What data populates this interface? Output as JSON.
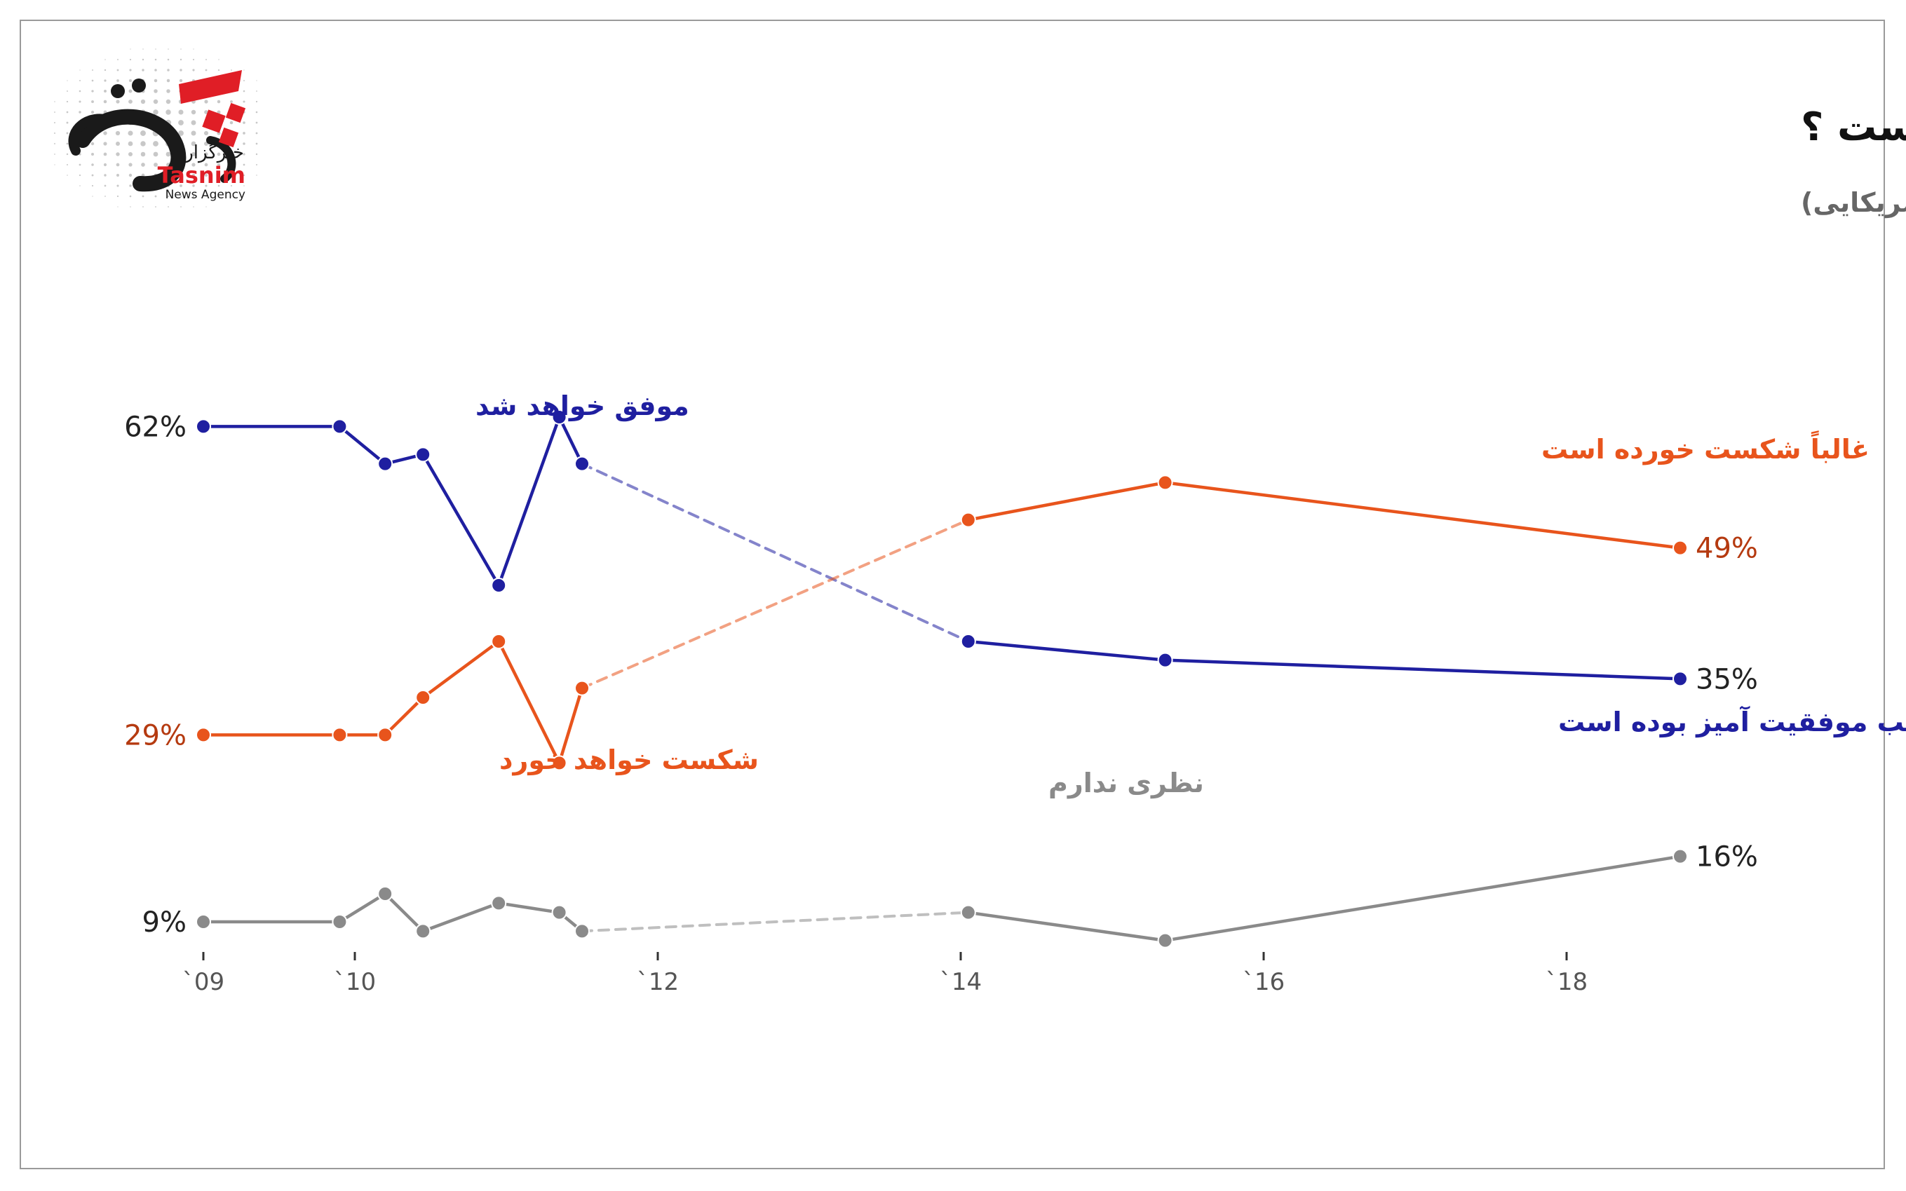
{
  "brand": {
    "name_fa": "خبرگزاری",
    "name_en": "Tasnim",
    "tagline": "News Agency",
    "red": "#e01e26",
    "black": "#1a1a1a"
  },
  "chart_data": {
    "type": "line",
    "title": "آیا فکر می‌کنید آمریکا به اهدافش در افغانستان رسیده است ؟",
    "subtitle": "(نظرسنجی از بزرگسالان آمریکایی)",
    "xlim": [
      2009,
      2019
    ],
    "ylim": [
      0,
      75
    ],
    "x_ticks": [
      {
        "value": 2009,
        "label": "`09"
      },
      {
        "value": 2010,
        "label": "`10"
      },
      {
        "value": 2012,
        "label": "`12"
      },
      {
        "value": 2014,
        "label": "`14"
      },
      {
        "value": 2016,
        "label": "`16"
      },
      {
        "value": 2018,
        "label": "`18"
      }
    ],
    "series": [
      {
        "id": "succeed",
        "color": "#1f1fa0",
        "points": [
          [
            2009.0,
            62
          ],
          [
            2009.9,
            62
          ],
          [
            2010.2,
            58
          ],
          [
            2010.45,
            59
          ],
          [
            2010.95,
            45
          ],
          [
            2011.35,
            63
          ],
          [
            2011.5,
            58
          ],
          [
            2014.05,
            39
          ],
          [
            2015.35,
            37
          ],
          [
            2018.75,
            35
          ]
        ],
        "dashed_segment": [
          6,
          7
        ],
        "label_start": "62%",
        "label_end": "35%"
      },
      {
        "id": "fail",
        "color": "#e8541c",
        "points": [
          [
            2009.0,
            29
          ],
          [
            2009.9,
            29
          ],
          [
            2010.2,
            29
          ],
          [
            2010.45,
            33
          ],
          [
            2010.95,
            39
          ],
          [
            2011.35,
            26
          ],
          [
            2011.5,
            34
          ],
          [
            2014.05,
            52
          ],
          [
            2015.35,
            56
          ],
          [
            2018.75,
            49
          ]
        ],
        "dashed_segment": [
          6,
          7
        ],
        "label_start": "29%",
        "label_end": "49%"
      },
      {
        "id": "noopinion",
        "color": "#8a8a8a",
        "points": [
          [
            2009.0,
            9
          ],
          [
            2009.9,
            9
          ],
          [
            2010.2,
            12
          ],
          [
            2010.45,
            8
          ],
          [
            2010.95,
            11
          ],
          [
            2011.35,
            10
          ],
          [
            2011.5,
            8
          ],
          [
            2014.05,
            10
          ],
          [
            2015.35,
            7
          ],
          [
            2018.75,
            16
          ]
        ],
        "dashed_segment": [
          6,
          7
        ],
        "label_start": "9%",
        "label_end": "16%"
      }
    ],
    "annotations": [
      {
        "text": "موفق خواهد شد",
        "series": "succeed"
      },
      {
        "text": "غالباً شکست خورده است",
        "series": "fail"
      },
      {
        "text": "شکست خواهد خورد",
        "series": "fail"
      },
      {
        "text": "اغلب موفقیت آمیز بوده است",
        "series": "succeed"
      },
      {
        "text": "نظری ندارم",
        "series": "noopinion"
      }
    ]
  }
}
